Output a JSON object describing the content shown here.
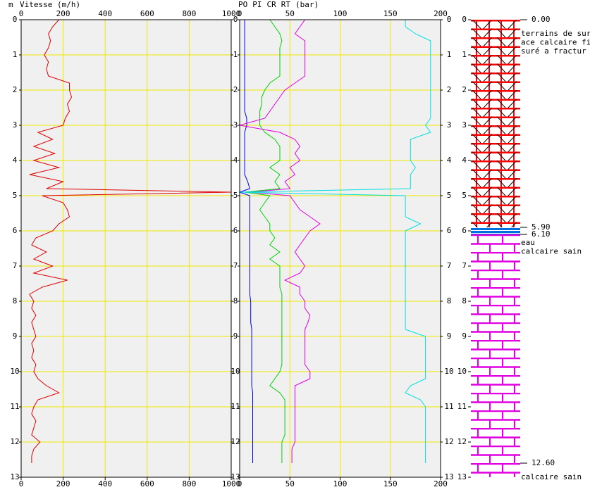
{
  "chart_data": [
    {
      "type": "line",
      "axis_label": "m",
      "title": "Vitesse (m/h)",
      "color": "#e00000",
      "xlim": [
        0,
        1000
      ],
      "xticks": [
        0,
        200,
        400,
        600,
        800,
        1000
      ],
      "ylim": [
        0,
        13
      ],
      "yticks": [
        0,
        1,
        2,
        3,
        4,
        5,
        6,
        7,
        8,
        9,
        10,
        11,
        12,
        13
      ],
      "grid": true,
      "depth": [
        0,
        0.2,
        0.4,
        0.6,
        0.8,
        1.0,
        1.2,
        1.4,
        1.6,
        1.8,
        2.0,
        2.2,
        2.4,
        2.6,
        2.8,
        3.0,
        3.2,
        3.4,
        3.6,
        3.8,
        4.0,
        4.2,
        4.4,
        4.6,
        4.8,
        4.9,
        5.0,
        5.2,
        5.4,
        5.6,
        5.8,
        6.0,
        6.2,
        6.4,
        6.6,
        6.8,
        7.0,
        7.2,
        7.4,
        7.6,
        7.8,
        8.0,
        8.2,
        8.4,
        8.6,
        8.8,
        9.0,
        9.2,
        9.4,
        9.6,
        9.8,
        10.0,
        10.2,
        10.4,
        10.6,
        10.8,
        11.0,
        11.2,
        11.4,
        11.6,
        11.8,
        12.0,
        12.2,
        12.4,
        12.6
      ],
      "values": [
        180,
        150,
        130,
        140,
        130,
        110,
        130,
        120,
        130,
        230,
        230,
        240,
        220,
        230,
        210,
        200,
        80,
        150,
        60,
        160,
        60,
        180,
        40,
        200,
        120,
        1000,
        100,
        200,
        220,
        230,
        180,
        150,
        70,
        50,
        120,
        60,
        150,
        60,
        220,
        100,
        40,
        60,
        50,
        70,
        50,
        60,
        70,
        50,
        60,
        50,
        70,
        60,
        80,
        120,
        180,
        80,
        60,
        50,
        70,
        60,
        50,
        90,
        60,
        50,
        50
      ]
    },
    {
      "type": "line",
      "title": "(bar)",
      "xlim": [
        0,
        200
      ],
      "xticks": [
        0,
        50,
        100,
        150,
        200
      ],
      "ylim": [
        0,
        13
      ],
      "yticks": [
        0,
        1,
        2,
        3,
        4,
        5,
        6,
        7,
        8,
        9,
        10,
        11,
        12,
        13
      ],
      "grid": true,
      "depth": [
        0,
        0.2,
        0.4,
        0.6,
        0.8,
        1.0,
        1.2,
        1.4,
        1.6,
        1.8,
        2.0,
        2.2,
        2.4,
        2.6,
        2.8,
        3.0,
        3.2,
        3.4,
        3.6,
        3.8,
        4.0,
        4.2,
        4.4,
        4.6,
        4.8,
        4.9,
        5.0,
        5.2,
        5.4,
        5.6,
        5.8,
        6.0,
        6.2,
        6.4,
        6.6,
        6.8,
        7.0,
        7.2,
        7.4,
        7.6,
        7.8,
        8.0,
        8.2,
        8.4,
        8.6,
        8.8,
        9.0,
        9.2,
        9.4,
        9.6,
        9.8,
        10.0,
        10.2,
        10.4,
        10.6,
        10.8,
        11.0,
        11.2,
        11.4,
        11.6,
        11.8,
        12.0,
        12.2,
        12.4,
        12.6
      ],
      "series": [
        {
          "name": "PO",
          "color": "#00d000",
          "values": [
            30,
            35,
            40,
            42,
            40,
            40,
            40,
            40,
            40,
            30,
            25,
            22,
            22,
            20,
            20,
            20,
            25,
            35,
            40,
            40,
            40,
            30,
            40,
            35,
            40,
            5,
            30,
            25,
            20,
            25,
            30,
            30,
            35,
            30,
            40,
            30,
            40,
            40,
            40,
            40,
            42,
            42,
            42,
            42,
            42,
            42,
            42,
            42,
            42,
            42,
            42,
            40,
            35,
            30,
            40,
            45,
            45,
            45,
            45,
            45,
            45,
            42,
            42,
            42,
            42
          ]
        },
        {
          "name": "PI",
          "color": "#0000e0",
          "values": [
            5,
            5,
            5,
            5,
            5,
            5,
            5,
            5,
            5,
            5,
            5,
            5,
            5,
            5,
            7,
            7,
            5,
            5,
            5,
            5,
            5,
            5,
            5,
            8,
            10,
            0,
            10,
            10,
            10,
            10,
            10,
            10,
            10,
            10,
            10,
            10,
            10,
            10,
            10,
            10,
            10,
            11,
            11,
            11,
            11,
            12,
            12,
            12,
            12,
            12,
            12,
            12,
            12,
            12,
            13,
            13,
            13,
            13,
            13,
            13,
            13,
            13,
            13,
            13,
            13
          ]
        },
        {
          "name": "CR",
          "color": "#e000e0",
          "values": [
            65,
            60,
            55,
            65,
            65,
            65,
            65,
            65,
            65,
            55,
            45,
            40,
            35,
            30,
            25,
            0,
            40,
            55,
            60,
            55,
            60,
            50,
            55,
            45,
            50,
            10,
            50,
            55,
            60,
            70,
            80,
            70,
            65,
            60,
            55,
            60,
            65,
            60,
            45,
            60,
            60,
            65,
            65,
            70,
            68,
            65,
            65,
            65,
            65,
            65,
            65,
            70,
            70,
            55,
            55,
            55,
            55,
            55,
            55,
            55,
            55,
            55,
            52,
            52,
            52
          ]
        },
        {
          "name": "RT",
          "color": "#00e0e0",
          "values": [
            165,
            165,
            175,
            190,
            190,
            190,
            190,
            190,
            190,
            190,
            190,
            190,
            190,
            190,
            190,
            185,
            190,
            170,
            170,
            170,
            170,
            175,
            170,
            170,
            170,
            0,
            165,
            165,
            165,
            165,
            180,
            165,
            165,
            165,
            165,
            165,
            165,
            165,
            165,
            165,
            165,
            165,
            165,
            165,
            165,
            165,
            185,
            185,
            185,
            185,
            185,
            185,
            185,
            170,
            165,
            180,
            185,
            185,
            185,
            185,
            185,
            185,
            185,
            185,
            185
          ]
        }
      ]
    },
    {
      "type": "lithology",
      "ylim": [
        0,
        13
      ],
      "yticks": [
        0,
        1,
        2,
        3,
        4,
        5,
        6,
        7,
        8,
        9,
        10,
        11,
        12,
        13
      ],
      "boundaries": [
        {
          "value": 0,
          "label": "0.00"
        },
        {
          "value": 5.9,
          "label": "5.90"
        },
        {
          "value": 6.1,
          "label": "6.10"
        },
        {
          "value": 12.6,
          "label": "12.60"
        }
      ],
      "layers": [
        {
          "pattern": "fractured",
          "notes": [
            "terrains de surf",
            "ace calcaire fis",
            "suré a fractur"
          ]
        },
        {
          "pattern": "water",
          "notes": []
        },
        {
          "pattern": "brick",
          "notes": [
            "eau",
            "calcaire sain"
          ]
        },
        {
          "pattern": "brick",
          "notes": [
            "calcaire sain"
          ]
        }
      ]
    }
  ]
}
